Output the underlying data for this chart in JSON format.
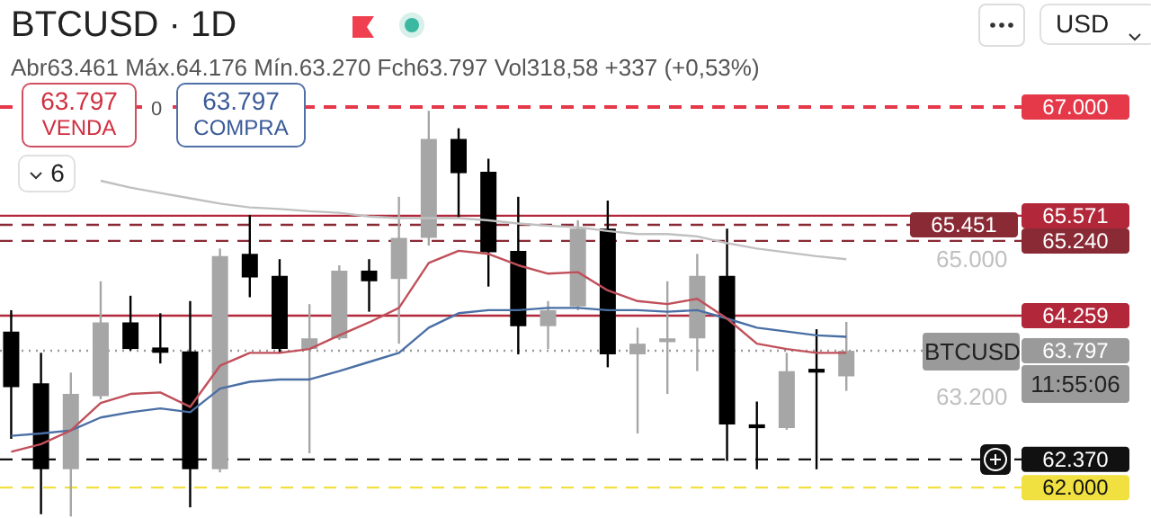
{
  "chart_data": {
    "type": "candlestick",
    "title": "BTCUSD · 1D",
    "subtitle": "Abr63.461 Máx.64.176 Mín.63.270 Fch63.797 Vol318,58 +337 (+0,53%)",
    "categories": [
      null,
      null,
      null,
      null,
      null,
      null,
      null,
      null,
      null,
      null,
      null,
      null,
      null,
      null,
      null,
      null,
      null,
      null,
      null,
      null,
      null,
      null,
      null,
      null,
      null,
      null,
      null,
      null,
      null
    ],
    "ohlc": [
      [
        64050,
        64330,
        62640,
        63320
      ],
      [
        63370,
        63770,
        61650,
        62240
      ],
      [
        62240,
        63510,
        61620,
        63230
      ],
      [
        63200,
        64710,
        63160,
        64170
      ],
      [
        64170,
        64520,
        63800,
        63820
      ],
      [
        63840,
        64290,
        63630,
        63770
      ],
      [
        63790,
        64450,
        61740,
        62240
      ],
      [
        62240,
        65140,
        62200,
        65040
      ],
      [
        65070,
        65580,
        64500,
        64760
      ],
      [
        64780,
        65000,
        63770,
        63820
      ],
      [
        63820,
        64410,
        62450,
        63960
      ],
      [
        63960,
        64920,
        63940,
        64850
      ],
      [
        64850,
        65000,
        64310,
        64710
      ],
      [
        64740,
        65820,
        63890,
        65280
      ],
      [
        65280,
        66950,
        65180,
        66580
      ],
      [
        66580,
        66720,
        65540,
        66130
      ],
      [
        66150,
        66320,
        64640,
        65090
      ],
      [
        65110,
        65820,
        63750,
        64120
      ],
      [
        64120,
        64450,
        63820,
        64330
      ],
      [
        64380,
        65510,
        64330,
        65400
      ],
      [
        65400,
        65770,
        63580,
        63750
      ],
      [
        63750,
        64100,
        62710,
        63890
      ],
      [
        63910,
        64710,
        63230,
        63960
      ],
      [
        63960,
        65070,
        63530,
        64780
      ],
      [
        64780,
        65400,
        62350,
        62830
      ],
      [
        62830,
        63130,
        62240,
        62780
      ],
      [
        62780,
        63770,
        62760,
        63530
      ],
      [
        63560,
        64080,
        62240,
        63510
      ],
      [
        63461,
        64176,
        63270,
        63797
      ]
    ],
    "colors": [
      "#000000",
      "#000000",
      "#a6a6a6",
      "#a6a6a6",
      "#000000",
      "#000000",
      "#000000",
      "#a6a6a6",
      "#000000",
      "#000000",
      "#a6a6a6",
      "#a6a6a6",
      "#000000",
      "#a6a6a6",
      "#a6a6a6",
      "#000000",
      "#000000",
      "#000000",
      "#a6a6a6",
      "#a6a6a6",
      "#000000",
      "#a6a6a6",
      "#a6a6a6",
      "#a6a6a6",
      "#000000",
      "#000000",
      "#a6a6a6",
      "#000000",
      "#a6a6a6"
    ],
    "series": [
      {
        "type": "line",
        "color": "#c0c0c0",
        "values": [
          null,
          null,
          null,
          66030,
          65940,
          65870,
          65800,
          65730,
          65680,
          65660,
          65630,
          65610,
          65560,
          65540,
          65540,
          65540,
          65510,
          65470,
          65440,
          65420,
          65370,
          65330,
          65330,
          65300,
          65210,
          65140,
          65090,
          65040,
          65000
        ]
      },
      {
        "type": "line",
        "color": "#4a6fa5",
        "values": [
          62680,
          62710,
          62750,
          62920,
          62990,
          63040,
          62990,
          63300,
          63390,
          63420,
          63420,
          63530,
          63650,
          63770,
          64100,
          64290,
          64330,
          64330,
          64360,
          64360,
          64330,
          64330,
          64310,
          64330,
          64220,
          64100,
          64050,
          64000,
          63980
        ]
      },
      {
        "type": "line",
        "color": "#c0505a",
        "values": [
          62470,
          62570,
          62750,
          63110,
          63230,
          63250,
          63060,
          63600,
          63770,
          63770,
          63820,
          64000,
          64170,
          64360,
          64950,
          65110,
          65070,
          64920,
          64810,
          64830,
          64590,
          64450,
          64410,
          64480,
          64220,
          63890,
          63820,
          63770,
          63770
        ]
      }
    ],
    "ylim": [
      61600,
      67200
    ],
    "yticks": [
      {
        "value": 63200,
        "label": "63.200"
      },
      {
        "value": 65000,
        "label": "65.000"
      }
    ],
    "grid": false,
    "marker": "none",
    "line_style": "solid",
    "ref_lines": [
      {
        "axis": "y",
        "value": 67000,
        "label": "67.000",
        "color": "#e5394a",
        "line_style": "dashed"
      },
      {
        "axis": "y",
        "value": 65571,
        "label": "65.571",
        "color": "#b2283a",
        "line_style": "solid"
      },
      {
        "axis": "y",
        "value": 65451,
        "label": "65.451",
        "color": "#8a2a35",
        "line_style": "dashed"
      },
      {
        "axis": "y",
        "value": 65240,
        "label": "65.240",
        "color": "#8a2a35",
        "line_style": "dashed"
      },
      {
        "axis": "y",
        "value": 64259,
        "label": "64.259",
        "color": "#b2283a",
        "line_style": "solid"
      },
      {
        "axis": "y",
        "value": 63797,
        "label": "63.797",
        "color": "#9a9a9a",
        "line_style": "dotted"
      },
      {
        "axis": "y",
        "value": 62370,
        "label": "62.370",
        "color": "#111111",
        "line_style": "dashed"
      },
      {
        "axis": "y",
        "value": 62000,
        "label": "62.000",
        "color": "#f0e040",
        "line_style": "dashed"
      }
    ],
    "annotations": [
      "63.797",
      "VENDA",
      "0",
      "63.797",
      "COMPRA",
      "6",
      "USD",
      "BTCUSD",
      "11:55:06"
    ]
  }
}
